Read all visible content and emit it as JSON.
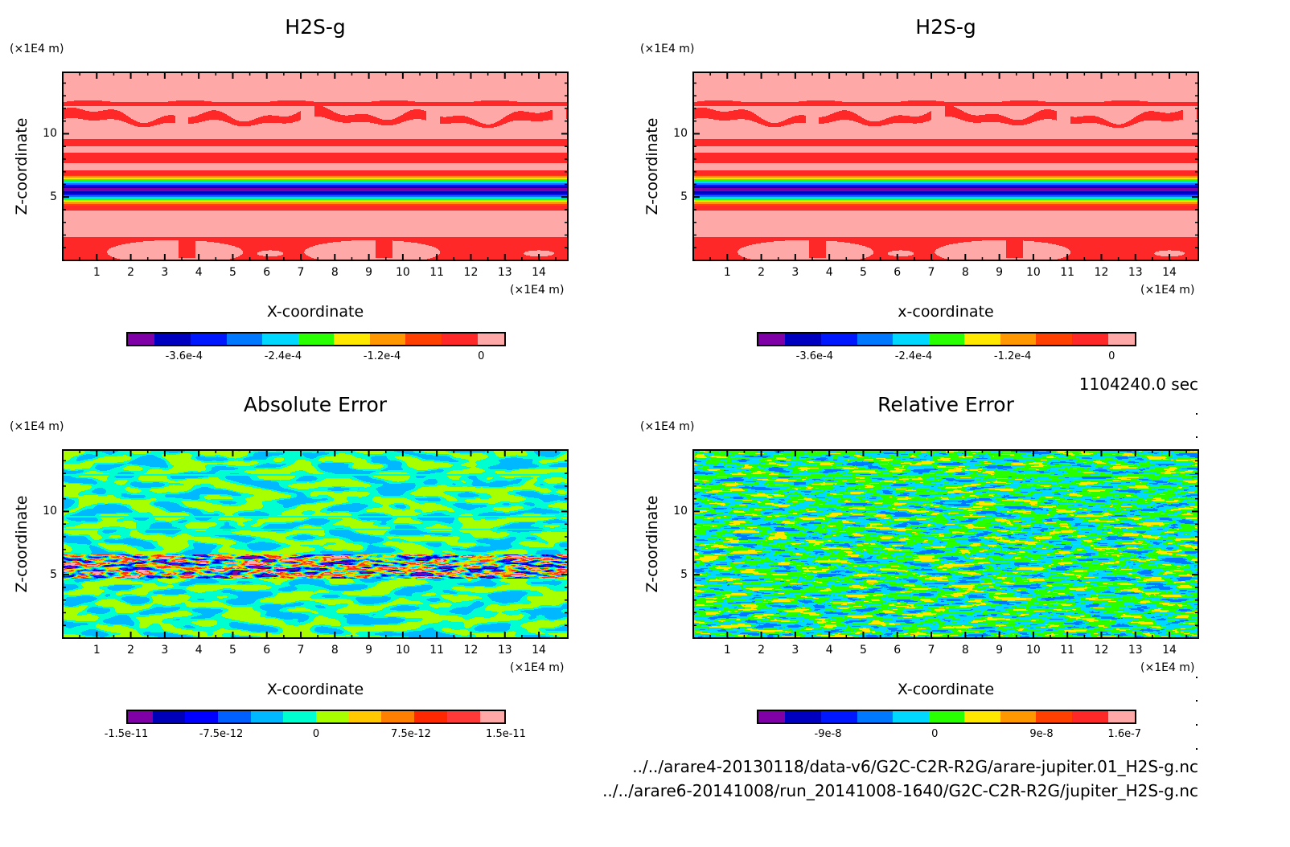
{
  "time_label": "1104240.0 sec",
  "files": [
    "../../arare4-20130118/data-v6/G2C-C2R-R2G/arare-jupiter.01_H2S-g.nc",
    "../../arare6-20141008/run_20141008-1640/G2C-C2R-R2G/jupiter_H2S-g.nc"
  ],
  "chart_data": [
    {
      "type": "heatmap",
      "title": "H2S-g",
      "xlabel": "X-coordinate",
      "ylabel": "Z-coordinate",
      "x_unit": "(×1E4 m)",
      "y_unit": "(×1E4 m)",
      "xlim": [
        0,
        14.85
      ],
      "ylim": [
        0,
        14.85
      ],
      "x_ticks": [
        "1",
        "2",
        "3",
        "4",
        "5",
        "6",
        "7",
        "8",
        "9",
        "10",
        "11",
        "12",
        "13",
        "14"
      ],
      "y_ticks": [
        "5",
        "10"
      ],
      "field": "stratified",
      "colorbar": {
        "colors": [
          "#8000a8",
          "#0000c0",
          "#0018ff",
          "#0078ff",
          "#00d8ff",
          "#28ff00",
          "#ffe800",
          "#ff9800",
          "#ff4000",
          "#ff2828",
          "#ffa8a8"
        ],
        "labels": [
          "-3.6e-4",
          "-2.4e-4",
          "-1.2e-4",
          "0"
        ],
        "label_values": [
          -0.00036,
          -0.00024,
          -0.00012,
          0
        ],
        "range": [
          -0.00043,
          3e-05
        ]
      }
    },
    {
      "type": "heatmap",
      "title": "H2S-g",
      "xlabel": "x-coordinate",
      "ylabel": "Z-coordinate",
      "x_unit": "(×1E4 m)",
      "y_unit": "(×1E4 m)",
      "xlim": [
        0,
        14.85
      ],
      "ylim": [
        0,
        14.85
      ],
      "x_ticks": [
        "1",
        "2",
        "3",
        "4",
        "5",
        "6",
        "7",
        "8",
        "9",
        "10",
        "11",
        "12",
        "13",
        "14"
      ],
      "y_ticks": [
        "5",
        "10"
      ],
      "field": "stratified",
      "colorbar": {
        "colors": [
          "#8000a8",
          "#0000c0",
          "#0018ff",
          "#0078ff",
          "#00d8ff",
          "#28ff00",
          "#ffe800",
          "#ff9800",
          "#ff4000",
          "#ff2828",
          "#ffa8a8"
        ],
        "labels": [
          "-3.6e-4",
          "-2.4e-4",
          "-1.2e-4",
          "0"
        ],
        "label_values": [
          -0.00036,
          -0.00024,
          -0.00012,
          0
        ],
        "range": [
          -0.00043,
          3e-05
        ]
      }
    },
    {
      "type": "heatmap",
      "title": "Absolute Error",
      "xlabel": "X-coordinate",
      "ylabel": "Z-coordinate",
      "x_unit": "(×1E4 m)",
      "y_unit": "(×1E4 m)",
      "xlim": [
        0,
        14.85
      ],
      "ylim": [
        0,
        14.85
      ],
      "x_ticks": [
        "1",
        "2",
        "3",
        "4",
        "5",
        "6",
        "7",
        "8",
        "9",
        "10",
        "11",
        "12",
        "13",
        "14"
      ],
      "y_ticks": [
        "5",
        "10"
      ],
      "field": "abs-noise",
      "colorbar": {
        "colors": [
          "#8000a8",
          "#0000b8",
          "#0000ff",
          "#0060ff",
          "#00b8ff",
          "#00ffd0",
          "#a8ff00",
          "#ffc800",
          "#ff8000",
          "#ff2800",
          "#ff3838",
          "#ffa8a8"
        ],
        "labels": [
          "-1.5e-11",
          "-7.5e-12",
          "0",
          "7.5e-12",
          "1.5e-11"
        ],
        "label_values": [
          -1.5e-11,
          -7.5e-12,
          0,
          7.5e-12,
          1.5e-11
        ],
        "range": [
          -1.5e-11,
          1.5e-11
        ]
      }
    },
    {
      "type": "heatmap",
      "title": "Relative Error",
      "xlabel": "X-coordinate",
      "ylabel": "Z-coordinate",
      "x_unit": "(×1E4 m)",
      "y_unit": "(×1E4 m)",
      "xlim": [
        0,
        14.85
      ],
      "ylim": [
        0,
        14.85
      ],
      "x_ticks": [
        "1",
        "2",
        "3",
        "4",
        "5",
        "6",
        "7",
        "8",
        "9",
        "10",
        "11",
        "12",
        "13",
        "14"
      ],
      "y_ticks": [
        "5",
        "10"
      ],
      "field": "rel-noise",
      "colorbar": {
        "colors": [
          "#8000a8",
          "#0000c0",
          "#0018ff",
          "#0078ff",
          "#00d8ff",
          "#28ff00",
          "#ffe800",
          "#ff9800",
          "#ff4000",
          "#ff2828",
          "#ffa8a8"
        ],
        "labels": [
          "-9e-8",
          "0",
          "9e-8",
          "1.6e-7"
        ],
        "label_values": [
          -9e-08,
          0,
          9e-08,
          1.6e-07
        ],
        "range": [
          -1.5e-07,
          1.7e-07
        ]
      }
    }
  ]
}
